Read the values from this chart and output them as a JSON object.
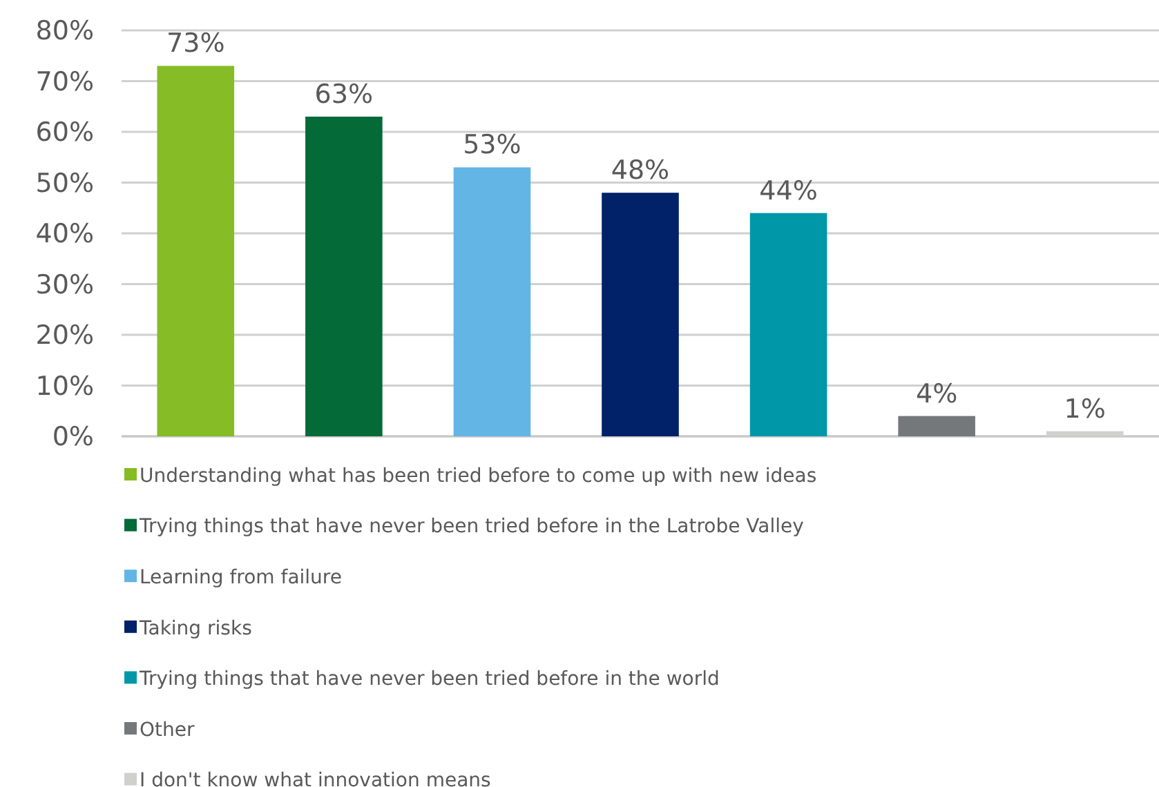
{
  "chart_data": {
    "type": "bar",
    "categories": [
      null,
      null,
      null,
      null,
      null,
      null,
      null
    ],
    "series": [
      {
        "name": "Understanding what has been tried before to come up with new ideas",
        "color": "#86bc25",
        "values": [
          73,
          null,
          null,
          null,
          null,
          null,
          null
        ],
        "value_labels": [
          "73%",
          null,
          null,
          null,
          null,
          null,
          null
        ]
      },
      {
        "name": "Trying things that have never been tried before in the Latrobe Valley",
        "color": "#046a38",
        "values": [
          null,
          63,
          null,
          null,
          null,
          null,
          null
        ],
        "value_labels": [
          null,
          "63%",
          null,
          null,
          null,
          null,
          null
        ]
      },
      {
        "name": "Learning from failure",
        "color": "#62b5e5",
        "values": [
          null,
          null,
          53,
          null,
          null,
          null,
          null
        ],
        "value_labels": [
          null,
          null,
          "53%",
          null,
          null,
          null,
          null
        ]
      },
      {
        "name": "Taking risks",
        "color": "#012169",
        "values": [
          null,
          null,
          null,
          48,
          null,
          null,
          null
        ],
        "value_labels": [
          null,
          null,
          null,
          "48%",
          null,
          null,
          null
        ]
      },
      {
        "name": "Trying things that have never been tried before in the world",
        "color": "#0097a9",
        "values": [
          null,
          null,
          null,
          null,
          44,
          null,
          null
        ],
        "value_labels": [
          null,
          null,
          null,
          null,
          "44%",
          null,
          null
        ]
      },
      {
        "name": "Other",
        "color": "#75787b",
        "values": [
          null,
          null,
          null,
          null,
          null,
          4,
          null
        ],
        "value_labels": [
          null,
          null,
          null,
          null,
          null,
          "4%",
          null
        ]
      },
      {
        "name": "I don't know what innovation means",
        "color": "#d0d0ce",
        "values": [
          null,
          null,
          null,
          null,
          null,
          null,
          1
        ],
        "value_labels": [
          null,
          null,
          null,
          null,
          null,
          null,
          "1%"
        ]
      }
    ],
    "ylim": [
      0,
      80
    ],
    "yticks": [
      {
        "value": 0,
        "label": "0%"
      },
      {
        "value": 10,
        "label": "10%"
      },
      {
        "value": 20,
        "label": "20%"
      },
      {
        "value": 30,
        "label": "30%"
      },
      {
        "value": 40,
        "label": "40%"
      },
      {
        "value": 50,
        "label": "50%"
      },
      {
        "value": 60,
        "label": "60%"
      },
      {
        "value": 70,
        "label": "70%"
      },
      {
        "value": 80,
        "label": "80%"
      }
    ],
    "grid": "y",
    "legend": "bottom"
  }
}
